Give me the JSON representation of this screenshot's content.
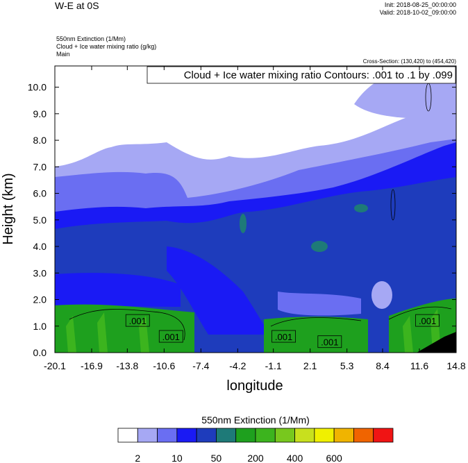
{
  "chart_data": {
    "type": "contour",
    "title": "W-E at 0S",
    "init": "Init: 2018-08-25_00:00:00",
    "valid": "Valid: 2018-10-02_09:00:00",
    "field_1": "550nm Extinction   (1/Mm)",
    "field_2": "Cloud + Ice water mixing ratio   (g/kg)",
    "field_3": "Main",
    "cross_section": "Cross-Section: (130,420) to (454,420)",
    "contour_info": "Cloud + Ice water mixing ratio Contours: .001 to .1 by .099",
    "x_label": "longitude",
    "y_label": "Height (km)",
    "xlim": [
      -20.1,
      14.8
    ],
    "xticks": [
      -20.1,
      -16.9,
      -13.8,
      -10.6,
      -7.4,
      -4.2,
      -1.1,
      2.1,
      5.3,
      8.4,
      11.6,
      14.8
    ],
    "ylim": [
      0,
      10.8
    ],
    "yticks": [
      {
        "value": 0,
        "label": "0.0"
      },
      {
        "value": 1,
        "label": "1.0"
      },
      {
        "value": 2,
        "label": "2.0"
      },
      {
        "value": 3,
        "label": "3.0"
      },
      {
        "value": 4,
        "label": "4.0"
      },
      {
        "value": 5,
        "label": "5.0"
      },
      {
        "value": 6,
        "label": "6.0"
      },
      {
        "value": 7,
        "label": "7.0"
      },
      {
        "value": 8,
        "label": "8.0"
      },
      {
        "value": 9,
        "label": "9.0"
      },
      {
        "value": 10,
        "label": "10.0"
      }
    ],
    "contour_labels": [
      {
        "label": ".001",
        "x": -12.9,
        "y": 1.2
      },
      {
        "label": ".001",
        "x": -10.0,
        "y": 0.6
      },
      {
        "label": ".001",
        "x": -0.2,
        "y": 0.6
      },
      {
        "label": ".001",
        "x": 3.8,
        "y": 0.4
      },
      {
        "label": ".001",
        "x": 12.3,
        "y": 1.2
      }
    ],
    "colorbar": {
      "title": "550nm Extinction  (1/Mm)",
      "colors": [
        "#ffffff",
        "#a6a8f4",
        "#6a6ef2",
        "#1a1af4",
        "#1e3cbc",
        "#1e7a78",
        "#1ea01e",
        "#3cb41e",
        "#78c81e",
        "#c8e01e",
        "#f0f000",
        "#f0b400",
        "#f06400",
        "#f01414"
      ],
      "ticks": [
        2,
        10,
        50,
        200,
        400,
        600
      ]
    }
  }
}
